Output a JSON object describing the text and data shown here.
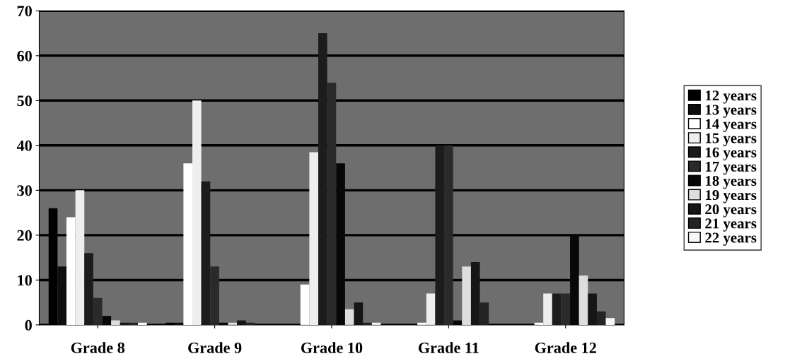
{
  "chart_data": {
    "type": "bar",
    "categories": [
      "Grade 8",
      "Grade 9",
      "Grade 10",
      "Grade 11",
      "Grade 12"
    ],
    "series": [
      {
        "name": "12 years",
        "color": "#000000",
        "values": [
          26,
          0.5,
          null,
          null,
          null
        ]
      },
      {
        "name": "13 years",
        "color": "#0e0e0e",
        "values": [
          13,
          0.5,
          null,
          null,
          null
        ]
      },
      {
        "name": "14 years",
        "color": "#ffffff",
        "values": [
          24,
          36,
          9,
          0.5,
          0.5
        ]
      },
      {
        "name": "15 years",
        "color": "#eeeeee",
        "values": [
          30,
          50,
          38.5,
          7,
          7
        ]
      },
      {
        "name": "16 years",
        "color": "#1c1c1c",
        "values": [
          16,
          32,
          65,
          40,
          7
        ]
      },
      {
        "name": "17 years",
        "color": "#2a2a2a",
        "values": [
          6,
          13,
          54,
          40,
          7
        ]
      },
      {
        "name": "18 years",
        "color": "#080808",
        "values": [
          2,
          0.5,
          36,
          1,
          20
        ]
      },
      {
        "name": "19 years",
        "color": "#dddddd",
        "values": [
          1,
          0.5,
          3.5,
          13,
          11
        ]
      },
      {
        "name": "20 years",
        "color": "#161616",
        "values": [
          0.5,
          1,
          5,
          14,
          7
        ]
      },
      {
        "name": "21 years",
        "color": "#242424",
        "values": [
          0.5,
          0.5,
          0.5,
          5,
          3
        ]
      },
      {
        "name": "22 years",
        "color": "#f7f7f7",
        "values": [
          0.5,
          null,
          0.5,
          null,
          1.5
        ]
      }
    ],
    "ylim": [
      0,
      70
    ],
    "yticks": [
      0,
      10,
      20,
      30,
      40,
      50,
      60,
      70
    ],
    "grid": "y",
    "legend": "right"
  }
}
